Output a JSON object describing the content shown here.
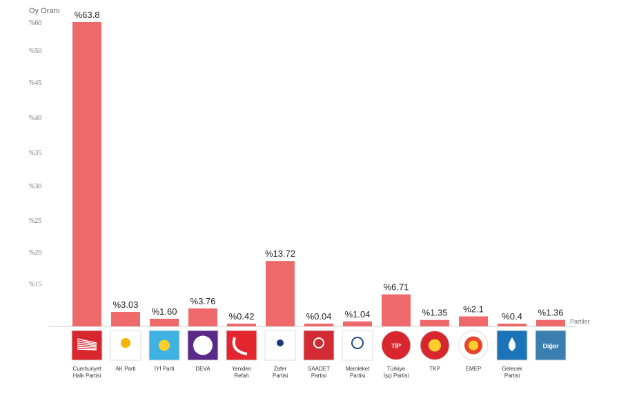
{
  "chart_data": {
    "type": "bar",
    "ylabel": "Oy Oranı",
    "xlabel": "Partiler",
    "ylim": [
      0,
      63.8
    ],
    "y_ticks": [
      "%60",
      "%50",
      "%45",
      "%40",
      "%35",
      "%30",
      "%25",
      "%20",
      "%15"
    ],
    "categories": [
      "CHP",
      "AK Parti",
      "İYİ Parti",
      "DEVA",
      "Yeniden Refah",
      "Zafer Partisi",
      "Saadet Partisi",
      "Memleket Partisi",
      "Türkiye İşçi Partisi",
      "TKP",
      "EMEP",
      "Gelecek Partisi",
      "Diğer"
    ],
    "category_labels": [
      [
        "Cumhuriyet",
        "Halk Partisi"
      ],
      [
        "AK Parti"
      ],
      [
        "İYİ Parti"
      ],
      [
        "DEVA"
      ],
      [
        "Yeniden",
        "Refah"
      ],
      [
        "Zafer",
        "Partisi"
      ],
      [
        "SAADET",
        "Partisi"
      ],
      [
        "Memleket",
        "Partisi"
      ],
      [
        "Türkiye",
        "İşçi Partisi"
      ],
      [
        "TKP"
      ],
      [
        "EMEP"
      ],
      [
        "Gelecek",
        "Partisi"
      ],
      []
    ],
    "value_labels": [
      "%63.8",
      "%3.03",
      "%1.60",
      "%3.76",
      "%0.42",
      "%13.72",
      "%0.04",
      "%1.04",
      "%6.71",
      "%1.35",
      "%2.1",
      "%0.4",
      "%1.36"
    ],
    "values": [
      63.8,
      3.03,
      1.6,
      3.76,
      0.42,
      13.72,
      0.04,
      1.04,
      6.71,
      1.35,
      2.1,
      0.4,
      1.36
    ],
    "grid": false,
    "legend": "none"
  },
  "logos": [
    {
      "name": "chp-logo",
      "color": "#d7262e",
      "text": ""
    },
    {
      "name": "akp-logo",
      "color": "#ffffff",
      "text": ""
    },
    {
      "name": "iyi-logo",
      "color": "#3fb1e3",
      "text": ""
    },
    {
      "name": "deva-logo",
      "color": "#5b2a86",
      "text": ""
    },
    {
      "name": "yeniden-refah-logo",
      "color": "#e3262e",
      "text": ""
    },
    {
      "name": "zafer-logo",
      "color": "#ffffff",
      "text": ""
    },
    {
      "name": "saadet-logo",
      "color": "#d32b33",
      "text": ""
    },
    {
      "name": "memleket-logo",
      "color": "#ffffff",
      "text": ""
    },
    {
      "name": "tip-logo",
      "color": "#d7262e",
      "text": "TİP"
    },
    {
      "name": "tkp-logo",
      "color": "#d7262e",
      "text": ""
    },
    {
      "name": "emep-logo",
      "color": "#ffffff",
      "text": ""
    },
    {
      "name": "gelecek-logo",
      "color": "#1b73b8",
      "text": ""
    },
    {
      "name": "diger-logo",
      "color": "#3a7fb0",
      "text": "Diğer"
    }
  ],
  "colors": {
    "bar": "#ee6a6a",
    "axis": "#cccccc"
  }
}
